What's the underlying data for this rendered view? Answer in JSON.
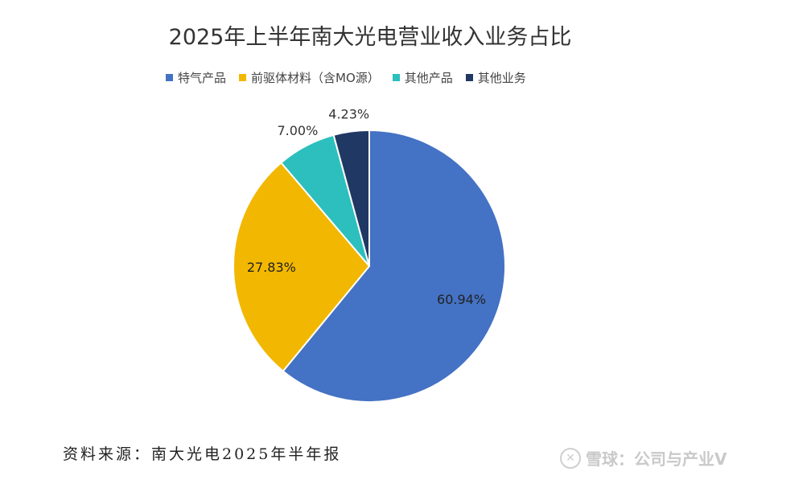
{
  "chart_data": {
    "type": "pie",
    "title": "2025年上半年南大光电营业收入业务占比",
    "categories": [
      "特气产品",
      "前驱体材料（含MO源）",
      "其他产品",
      "其他业务"
    ],
    "values": [
      60.94,
      27.83,
      7.0,
      4.23
    ],
    "data_labels": [
      "60.94%",
      "27.83%",
      "7.00%",
      "4.23%"
    ],
    "colors": [
      "#4472c4",
      "#f2b700",
      "#2cbfbd",
      "#203864"
    ],
    "legend_position": "top"
  },
  "footer": {
    "source": "资料来源：南大光电2025年半年报",
    "watermark": "雪球：公司与产业V"
  }
}
